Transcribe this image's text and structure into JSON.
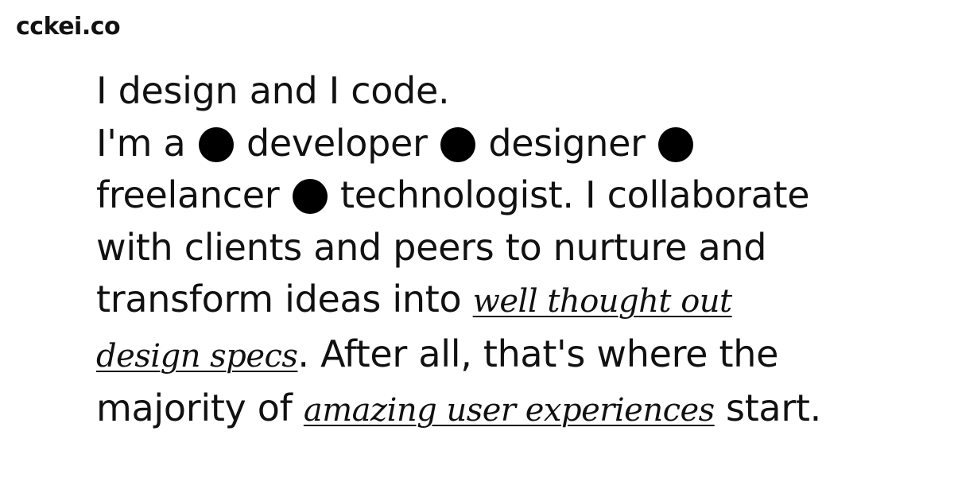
{
  "brand": {
    "logo_text": "cckei.co"
  },
  "intro": {
    "line1": "I design and I code.",
    "im_a": "I'm a",
    "roles": [
      "developer",
      "designer",
      "freelancer",
      "technologist."
    ],
    "collaborate": "I collaborate",
    "line4": "with clients and peers to nurture and",
    "line5_pre": "transform ideas into",
    "link1_part1": "well thought out",
    "link1_part2": "design specs",
    "line6_post": ". After all, that's where the",
    "line7_pre": "majority of",
    "link2": "amazing user experiences",
    "line7_post": "start."
  }
}
